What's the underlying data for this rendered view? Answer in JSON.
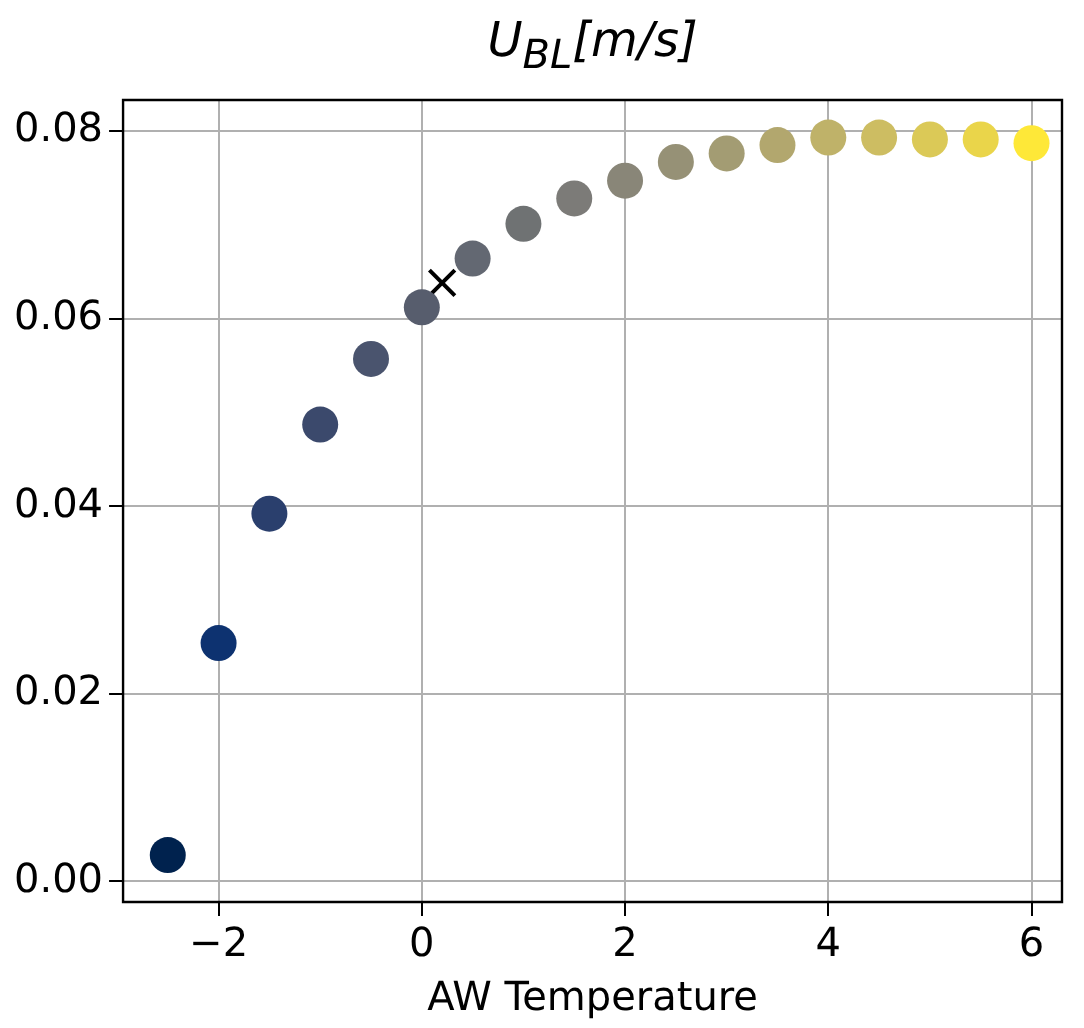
{
  "chart_data": {
    "type": "scatter",
    "title": "U$_{BL}$[m/s]",
    "xlabel": "AW Temperature",
    "grid": true,
    "legend": false,
    "marker": "circle",
    "xlim": [
      -2.94,
      6.3
    ],
    "ylim": [
      -0.0022,
      0.0833
    ],
    "xticks": [
      {
        "value": -2,
        "label": "−2"
      },
      {
        "value": 0,
        "label": "0"
      },
      {
        "value": 2,
        "label": "2"
      },
      {
        "value": 4,
        "label": "4"
      },
      {
        "value": 6,
        "label": "6"
      }
    ],
    "yticks": [
      {
        "value": 0,
        "label": "0.00"
      },
      {
        "value": 0.02,
        "label": "0.02"
      },
      {
        "value": 0.04,
        "label": "0.04"
      },
      {
        "value": 0.06,
        "label": "0.06"
      },
      {
        "value": 0.08,
        "label": "0.08"
      }
    ],
    "series": [
      {
        "x": [
          -2.5,
          -2,
          -1.5,
          -1,
          -0.5,
          0,
          0.5,
          1,
          1.5,
          2,
          2.5,
          3,
          3.5,
          4,
          4.5,
          5,
          5.5,
          6
        ],
        "values": [
          0.0028,
          0.0254,
          0.0392,
          0.0487,
          0.0557,
          0.0612,
          0.0664,
          0.0701,
          0.0728,
          0.0747,
          0.0767,
          0.0776,
          0.0785,
          0.0793,
          0.0793,
          0.0791,
          0.0791,
          0.0787
        ],
        "colors": [
          "#00224e",
          "#0d3270",
          "#2a3f6d",
          "#3b496c",
          "#4a546e",
          "#575d6d",
          "#636872",
          "#6f7273",
          "#7c7b78",
          "#898678",
          "#969176",
          "#a39c73",
          "#b2a76e",
          "#bfb269",
          "#cdbd62",
          "#dbc957",
          "#ead54a",
          "#fee838"
        ]
      },
      {
        "x": [
          0.2
        ],
        "values": [
          0.0638
        ],
        "color": "#000000",
        "marker": "cross"
      }
    ]
  }
}
